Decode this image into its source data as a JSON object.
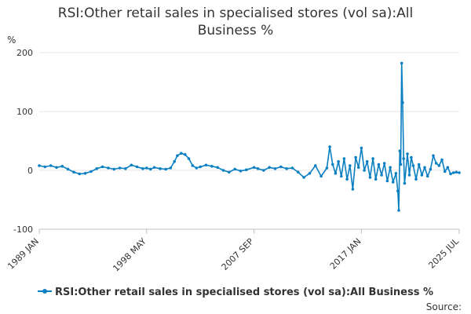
{
  "chart_data": {
    "type": "line",
    "title": "RSI:Other retail sales in specialised stores (vol sa):All Business %",
    "ylabel": "%",
    "xlabel": "",
    "ylim": [
      -100,
      200
    ],
    "y_ticks": [
      -100,
      0,
      100,
      200
    ],
    "x_range": [
      "1989-01",
      "2025-07"
    ],
    "x_ticks": [
      {
        "label": "1989 JAN",
        "date": "1989-01"
      },
      {
        "label": "1998 MAY",
        "date": "1998-05"
      },
      {
        "label": "2007 SEP",
        "date": "2007-09"
      },
      {
        "label": "2017 JAN",
        "date": "2017-01"
      },
      {
        "label": "2025 JUL",
        "date": "2025-07"
      }
    ],
    "grid": "horizontal",
    "legend_position": "bottom",
    "series": [
      {
        "name": "RSI:Other retail sales in specialised stores (vol sa):All Business %",
        "color": "#0a7fc2",
        "points": [
          [
            "1989-01",
            8
          ],
          [
            "1989-07",
            6
          ],
          [
            "1990-01",
            8
          ],
          [
            "1990-07",
            5
          ],
          [
            "1991-01",
            7
          ],
          [
            "1991-07",
            2
          ],
          [
            "1992-01",
            -3
          ],
          [
            "1992-07",
            -6
          ],
          [
            "1993-01",
            -5
          ],
          [
            "1993-07",
            -2
          ],
          [
            "1994-01",
            3
          ],
          [
            "1994-07",
            6
          ],
          [
            "1995-01",
            4
          ],
          [
            "1995-07",
            2
          ],
          [
            "1996-01",
            4
          ],
          [
            "1996-07",
            3
          ],
          [
            "1997-01",
            9
          ],
          [
            "1997-07",
            6
          ],
          [
            "1998-01",
            3
          ],
          [
            "1998-05",
            4
          ],
          [
            "1998-09",
            2
          ],
          [
            "1999-01",
            5
          ],
          [
            "1999-07",
            3
          ],
          [
            "2000-01",
            2
          ],
          [
            "2000-06",
            4
          ],
          [
            "2000-10",
            15
          ],
          [
            "2001-01",
            25
          ],
          [
            "2001-05",
            29
          ],
          [
            "2001-09",
            27
          ],
          [
            "2002-01",
            20
          ],
          [
            "2002-05",
            8
          ],
          [
            "2002-09",
            4
          ],
          [
            "2003-01",
            6
          ],
          [
            "2003-07",
            9
          ],
          [
            "2004-01",
            7
          ],
          [
            "2004-07",
            5
          ],
          [
            "2005-01",
            0
          ],
          [
            "2005-07",
            -3
          ],
          [
            "2006-01",
            2
          ],
          [
            "2006-07",
            -1
          ],
          [
            "2007-01",
            1
          ],
          [
            "2007-09",
            5
          ],
          [
            "2008-01",
            3
          ],
          [
            "2008-07",
            0
          ],
          [
            "2009-01",
            5
          ],
          [
            "2009-07",
            3
          ],
          [
            "2010-01",
            6
          ],
          [
            "2010-07",
            3
          ],
          [
            "2011-01",
            4
          ],
          [
            "2011-07",
            -3
          ],
          [
            "2012-01",
            -12
          ],
          [
            "2012-07",
            -5
          ],
          [
            "2013-01",
            8
          ],
          [
            "2013-07",
            -10
          ],
          [
            "2014-01",
            4
          ],
          [
            "2014-04",
            40
          ],
          [
            "2014-07",
            10
          ],
          [
            "2014-10",
            -5
          ],
          [
            "2015-01",
            15
          ],
          [
            "2015-04",
            -10
          ],
          [
            "2015-07",
            20
          ],
          [
            "2015-10",
            -15
          ],
          [
            "2016-01",
            8
          ],
          [
            "2016-04",
            -32
          ],
          [
            "2016-07",
            22
          ],
          [
            "2016-10",
            5
          ],
          [
            "2017-01",
            38
          ],
          [
            "2017-04",
            0
          ],
          [
            "2017-07",
            15
          ],
          [
            "2017-10",
            -12
          ],
          [
            "2018-01",
            20
          ],
          [
            "2018-04",
            -15
          ],
          [
            "2018-07",
            10
          ],
          [
            "2018-10",
            -8
          ],
          [
            "2019-01",
            12
          ],
          [
            "2019-04",
            -18
          ],
          [
            "2019-07",
            5
          ],
          [
            "2019-10",
            -20
          ],
          [
            "2020-01",
            -5
          ],
          [
            "2020-03",
            -35
          ],
          [
            "2020-04",
            -68
          ],
          [
            "2020-05",
            33
          ],
          [
            "2020-06",
            10
          ],
          [
            "2020-07",
            182
          ],
          [
            "2020-08",
            115
          ],
          [
            "2020-09",
            20
          ],
          [
            "2020-10",
            -22
          ],
          [
            "2021-01",
            28
          ],
          [
            "2021-03",
            -8
          ],
          [
            "2021-05",
            22
          ],
          [
            "2021-07",
            8
          ],
          [
            "2021-10",
            -15
          ],
          [
            "2022-01",
            10
          ],
          [
            "2022-04",
            -8
          ],
          [
            "2022-07",
            5
          ],
          [
            "2022-10",
            -10
          ],
          [
            "2023-01",
            2
          ],
          [
            "2023-04",
            25
          ],
          [
            "2023-07",
            12
          ],
          [
            "2023-10",
            8
          ],
          [
            "2024-01",
            18
          ],
          [
            "2024-04",
            -2
          ],
          [
            "2024-07",
            5
          ],
          [
            "2024-10",
            -6
          ],
          [
            "2025-01",
            -4
          ],
          [
            "2025-04",
            -3
          ],
          [
            "2025-07",
            -4
          ]
        ]
      }
    ]
  },
  "legend": {
    "label": "RSI:Other retail sales in specialised stores (vol sa):All Business %"
  },
  "source_label": "Source:"
}
